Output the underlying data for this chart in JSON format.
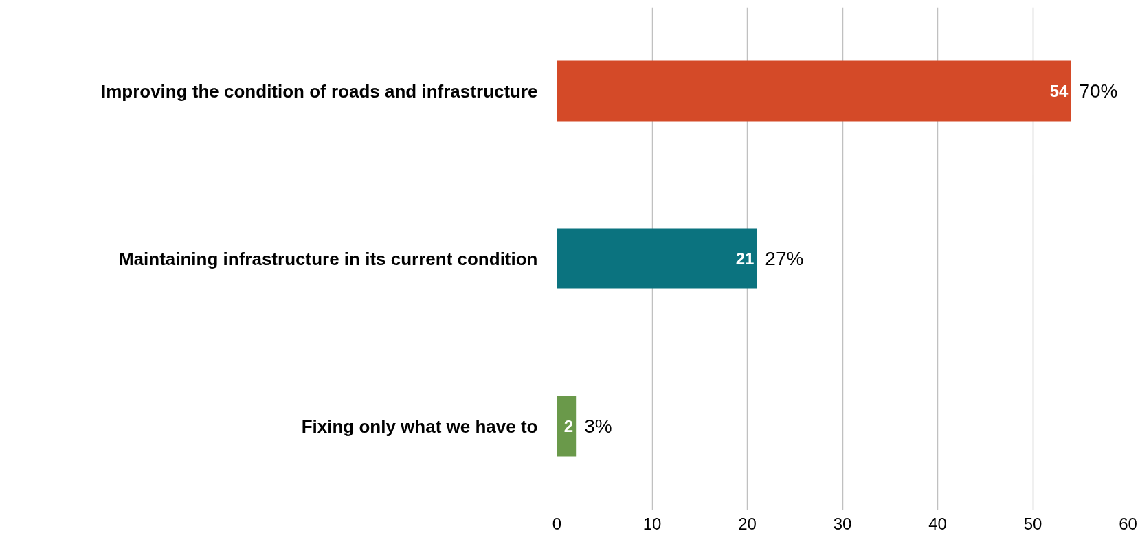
{
  "chart_data": {
    "type": "bar",
    "orientation": "horizontal",
    "categories": [
      "Improving the condition of roads and infrastructure",
      "Maintaining infrastructure in its current condition",
      "Fixing only what we have to"
    ],
    "values": [
      54,
      21,
      2
    ],
    "colors": [
      "#d44a28",
      "#0b737f",
      "#6a994a"
    ],
    "xlim": [
      0,
      60
    ],
    "xticks": [
      0,
      10,
      20,
      30,
      40,
      50,
      60
    ],
    "grid": "x",
    "data_labels": true,
    "annotations": [
      {
        "text": "70%",
        "x": 54,
        "y": "Improving the condition of roads and infrastructure"
      },
      {
        "text": "27%",
        "x": 21,
        "y": "Maintaining infrastructure in its current condition"
      },
      {
        "text": "3%",
        "x": 2,
        "y": "Fixing only what we have to"
      }
    ]
  }
}
